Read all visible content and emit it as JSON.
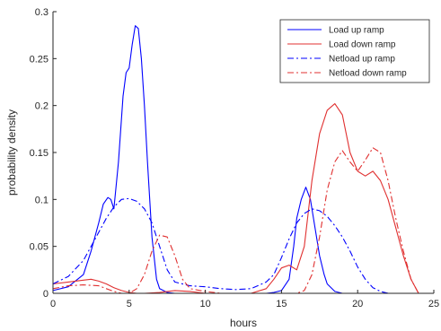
{
  "chart_data": {
    "type": "line",
    "xlabel": "hours",
    "ylabel": "probability density",
    "xlim": [
      0,
      25
    ],
    "ylim": [
      0,
      0.3
    ],
    "xticks": [
      0,
      5,
      10,
      15,
      20,
      25
    ],
    "xtick_labels": [
      "0",
      "5",
      "10",
      "15",
      "20",
      "25"
    ],
    "yticks": [
      0,
      0.05,
      0.1,
      0.15,
      0.2,
      0.25,
      0.3
    ],
    "ytick_labels": [
      "0",
      "0.05",
      "0.1",
      "0.15",
      "0.2",
      "0.25",
      "0.3"
    ],
    "grid": false,
    "legend_position": "top-right",
    "series": [
      {
        "name": "Load up ramp",
        "color": "#0000ff",
        "dash": "solid",
        "x": [
          0,
          1,
          2,
          2.5,
          3,
          3.3,
          3.6,
          3.8,
          4,
          4.3,
          4.6,
          4.8,
          5,
          5.2,
          5.4,
          5.6,
          5.8,
          6,
          6.2,
          6.5,
          6.8,
          7,
          7.5,
          8,
          9,
          10,
          11,
          12,
          13,
          14,
          14.5,
          15,
          15.5,
          15.8,
          16,
          16.3,
          16.6,
          16.9,
          17.2,
          17.5,
          17.8,
          18,
          18.5,
          19,
          20,
          25
        ],
        "y": [
          0.003,
          0.007,
          0.02,
          0.045,
          0.075,
          0.095,
          0.102,
          0.1,
          0.09,
          0.14,
          0.21,
          0.235,
          0.24,
          0.265,
          0.285,
          0.282,
          0.25,
          0.2,
          0.14,
          0.06,
          0.015,
          0.005,
          0.001,
          0.0,
          0.0,
          0.0,
          0.0,
          0.0,
          0.0,
          0.0,
          0.001,
          0.003,
          0.015,
          0.05,
          0.08,
          0.1,
          0.113,
          0.1,
          0.07,
          0.04,
          0.02,
          0.01,
          0.002,
          0.0,
          0.0,
          0.0
        ]
      },
      {
        "name": "Load down ramp",
        "color": "#e03030",
        "dash": "solid",
        "x": [
          0,
          1,
          2,
          2.5,
          3,
          3.5,
          4,
          4.5,
          5,
          5.5,
          6,
          7,
          8,
          9,
          10,
          11,
          12,
          13,
          14,
          14.5,
          15,
          15.5,
          16,
          16.5,
          17,
          17.5,
          18,
          18.5,
          19,
          19.5,
          20,
          20.5,
          21,
          21.5,
          22,
          22.5,
          23,
          23.5,
          24
        ],
        "y": [
          0.01,
          0.012,
          0.014,
          0.015,
          0.013,
          0.01,
          0.006,
          0.003,
          0.001,
          0.0,
          0.0,
          0.001,
          0.003,
          0.002,
          0.0,
          0.0,
          0.0,
          0.0,
          0.005,
          0.015,
          0.027,
          0.03,
          0.025,
          0.05,
          0.12,
          0.17,
          0.195,
          0.202,
          0.19,
          0.15,
          0.13,
          0.125,
          0.13,
          0.12,
          0.1,
          0.07,
          0.04,
          0.015,
          0.0
        ]
      },
      {
        "name": "Netload up ramp",
        "color": "#0000ff",
        "dash": "dashdot",
        "x": [
          0,
          1,
          2,
          3,
          3.5,
          4,
          4.5,
          5,
          5.5,
          6,
          6.5,
          7,
          7.5,
          8,
          9,
          10,
          11,
          12,
          13,
          14,
          14.5,
          15,
          15.5,
          16,
          16.5,
          17,
          17.5,
          18,
          18.5,
          19,
          19.5,
          20,
          20.5,
          21,
          21.5,
          22
        ],
        "y": [
          0.01,
          0.018,
          0.035,
          0.065,
          0.08,
          0.092,
          0.1,
          0.101,
          0.098,
          0.09,
          0.075,
          0.05,
          0.025,
          0.012,
          0.008,
          0.007,
          0.005,
          0.004,
          0.005,
          0.012,
          0.02,
          0.038,
          0.058,
          0.075,
          0.085,
          0.09,
          0.088,
          0.082,
          0.072,
          0.06,
          0.045,
          0.028,
          0.015,
          0.006,
          0.002,
          0.0
        ]
      },
      {
        "name": "Netload down ramp",
        "color": "#e03030",
        "dash": "dashdot",
        "x": [
          0,
          1,
          2,
          3,
          3.5,
          4,
          4.5,
          5,
          5.5,
          6,
          6.5,
          7,
          7.5,
          8,
          8.5,
          9,
          10,
          11,
          12,
          13,
          14,
          15,
          16,
          16.5,
          17,
          17.5,
          18,
          18.5,
          19,
          19.5,
          20,
          20.5,
          21,
          21.5,
          22,
          22.5,
          23,
          23.5,
          24
        ],
        "y": [
          0.005,
          0.008,
          0.009,
          0.008,
          0.005,
          0.002,
          0.0,
          0.0,
          0.005,
          0.02,
          0.045,
          0.062,
          0.06,
          0.04,
          0.015,
          0.005,
          0.002,
          0.0,
          0.0,
          0.0,
          0.0,
          0.0,
          0.0,
          0.003,
          0.02,
          0.06,
          0.11,
          0.14,
          0.152,
          0.14,
          0.13,
          0.142,
          0.155,
          0.15,
          0.12,
          0.08,
          0.045,
          0.015,
          0.0
        ]
      }
    ]
  }
}
